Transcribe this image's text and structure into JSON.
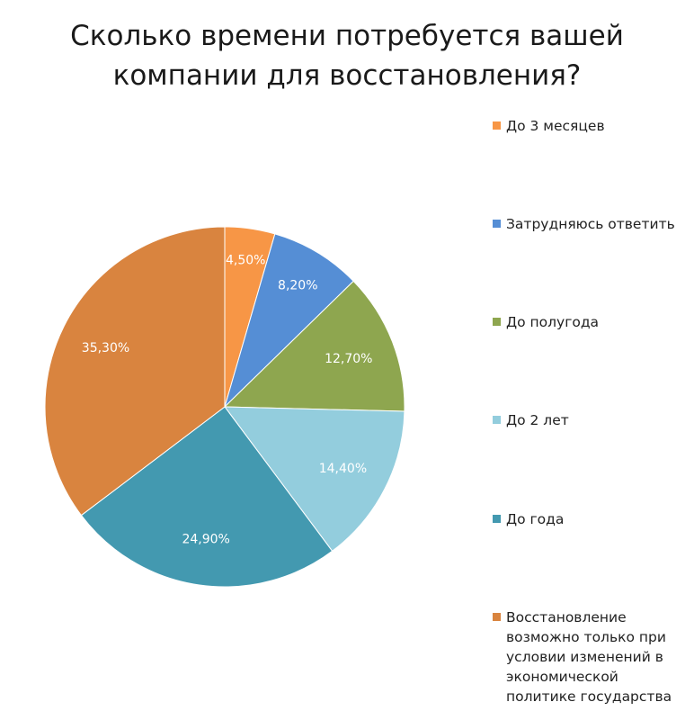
{
  "chart_data": {
    "type": "pie",
    "title_lines": [
      "Сколько времени потребуется вашей",
      "компании для восстановления?"
    ],
    "slices": [
      {
        "label": "До 3 месяцев",
        "value": 4.5,
        "display": "4,50%",
        "color": "#f79646"
      },
      {
        "label": "Затрудняюсь ответить",
        "value": 8.2,
        "display": "8,20%",
        "color": "#558ed5"
      },
      {
        "label": "До полугода",
        "value": 12.7,
        "display": "12,70%",
        "color": "#8ea64f"
      },
      {
        "label": "До 2 лет",
        "value": 14.4,
        "display": "14,40%",
        "color": "#93cddd"
      },
      {
        "label": "До года",
        "value": 24.9,
        "display": "24,90%",
        "color": "#4399b0"
      },
      {
        "label": "Восстановление возможно только при условии изменений в экономической политике государства",
        "value": 35.3,
        "display": "35,30%",
        "color": "#d9843f"
      }
    ],
    "legend_position": "right"
  }
}
